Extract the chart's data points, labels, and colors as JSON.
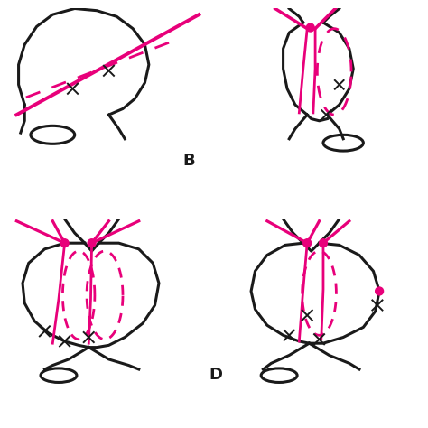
{
  "bg_color": "#ffffff",
  "line_color": "#1a1a1a",
  "pink": "#E8007A",
  "lw_body": 2.2,
  "lw_suture": 2.0,
  "fig_size": [
    4.74,
    4.74
  ],
  "dpi": 100,
  "label_B": "B",
  "label_D": "D"
}
